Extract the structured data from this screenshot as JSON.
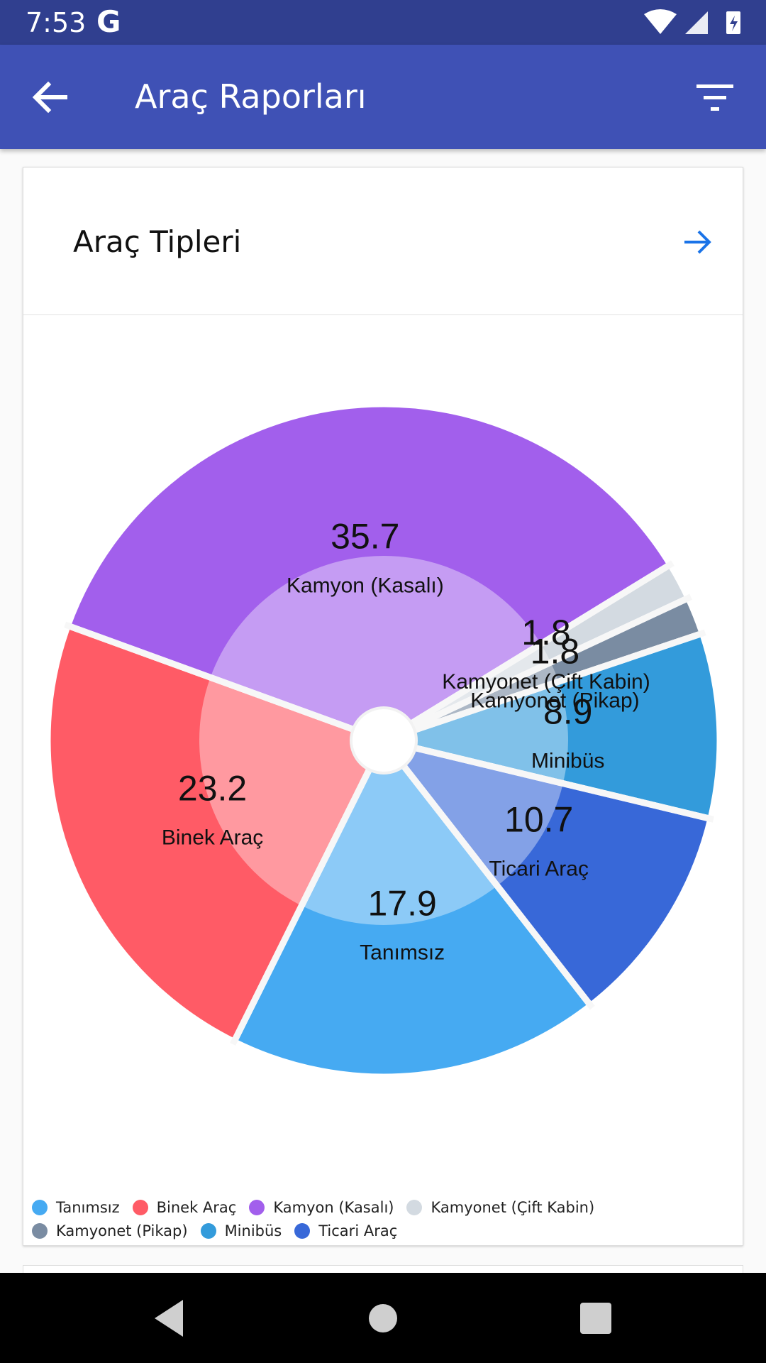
{
  "status_bar": {
    "time": "7:53",
    "g_label": "G"
  },
  "app_bar": {
    "title": "Araç Raporları"
  },
  "card": {
    "title": "Araç Tipleri"
  },
  "chart_data": {
    "type": "pie",
    "categories": [
      "Tanımsız",
      "Binek Araç",
      "Kamyon (Kasalı)",
      "Kamyonet (Çift Kabin)",
      "Kamyonet (Pikap)",
      "Minibüs",
      "Ticari Araç"
    ],
    "values": [
      17.9,
      23.2,
      35.7,
      1.8,
      1.8,
      8.9,
      10.7
    ],
    "value_labels": [
      "17.9",
      "23.2",
      "35.7",
      "1.8",
      "1.8",
      "8.9",
      "10.7"
    ],
    "colors": [
      "#46aaf2",
      "#ff5b66",
      "#a25fec",
      "#d3dae1",
      "#7a8ca2",
      "#339bdb",
      "#3868d8"
    ],
    "legend_position": "bottom-left"
  },
  "legend": {
    "items": [
      {
        "label": "Tanımsız",
        "color": "#46aaf2"
      },
      {
        "label": "Binek Araç",
        "color": "#ff5b66"
      },
      {
        "label": "Kamyon (Kasalı)",
        "color": "#a25fec"
      },
      {
        "label": "Kamyonet (Çift Kabin)",
        "color": "#d3dae1"
      },
      {
        "label": "Kamyonet (Pikap)",
        "color": "#7a8ca2"
      },
      {
        "label": "Minibüs",
        "color": "#339bdb"
      },
      {
        "label": "Ticari Araç",
        "color": "#3868d8"
      }
    ]
  },
  "icons": {
    "back": "arrow-left-icon",
    "filter": "filter-icon",
    "card_arrow": "arrow-right-icon"
  }
}
